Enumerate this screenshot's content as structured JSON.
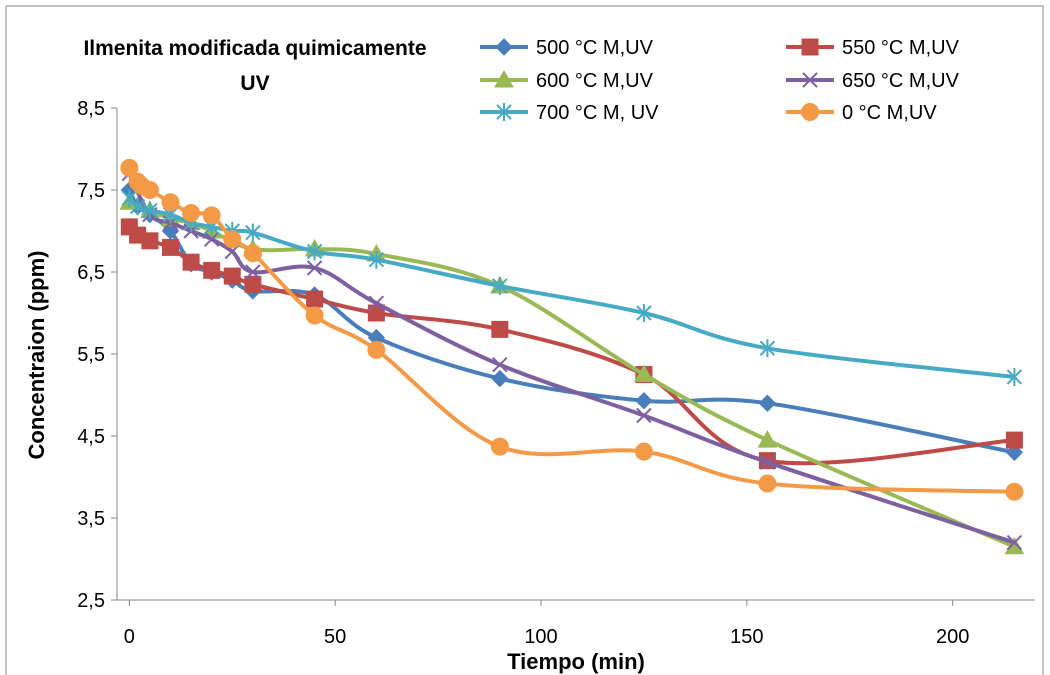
{
  "chart_data": {
    "type": "line",
    "title_line1": "Ilmenita modificada quimicamente",
    "title_line2": "UV",
    "xlabel": "Tiempo (min)",
    "ylabel": "Concentraion (ppm)",
    "xlim": [
      -3,
      220
    ],
    "ylim": [
      2.5,
      8.5
    ],
    "xticks": [
      0,
      50,
      100,
      150,
      200
    ],
    "yticks": [
      2.5,
      3.5,
      4.5,
      5.5,
      6.5,
      7.5,
      8.5
    ],
    "ytick_labels": [
      "2,5",
      "3,5",
      "4,5",
      "5,5",
      "6,5",
      "7,5",
      "8,5"
    ],
    "grid": false,
    "legend_position": "top-right",
    "series": [
      {
        "name": "500 °C M,UV",
        "color": "#4a7ebb",
        "marker": "diamond",
        "x": [
          0,
          2,
          5,
          10,
          15,
          20,
          25,
          30,
          45,
          60,
          90,
          125,
          155,
          215
        ],
        "y": [
          7.5,
          7.3,
          7.2,
          7.0,
          6.6,
          6.5,
          6.4,
          6.27,
          6.22,
          5.7,
          5.2,
          4.93,
          4.9,
          4.3
        ]
      },
      {
        "name": "550 °C M,UV",
        "color": "#be4b48",
        "marker": "square",
        "x": [
          0,
          2,
          5,
          10,
          15,
          20,
          25,
          30,
          45,
          60,
          90,
          125,
          155,
          215
        ],
        "y": [
          7.05,
          6.95,
          6.88,
          6.8,
          6.62,
          6.52,
          6.45,
          6.35,
          6.17,
          6.0,
          5.8,
          5.25,
          4.2,
          4.45
        ]
      },
      {
        "name": "600 °C M,UV",
        "color": "#98b954",
        "marker": "triangle",
        "x": [
          0,
          5,
          10,
          15,
          20,
          30,
          45,
          60,
          90,
          125,
          155,
          215
        ],
        "y": [
          7.35,
          7.25,
          7.15,
          7.1,
          7.0,
          6.78,
          6.78,
          6.72,
          6.33,
          5.25,
          4.45,
          3.15
        ]
      },
      {
        "name": "650 °C M,UV",
        "color": "#7d60a0",
        "marker": "x",
        "x": [
          0,
          5,
          10,
          15,
          20,
          25,
          30,
          45,
          60,
          90,
          125,
          155,
          215
        ],
        "y": [
          7.7,
          7.2,
          7.1,
          7.0,
          6.9,
          6.75,
          6.5,
          6.55,
          6.12,
          5.37,
          4.75,
          4.18,
          3.2
        ]
      },
      {
        "name": "700 °C M, UV",
        "color": "#46aac5",
        "marker": "star",
        "x": [
          0,
          2,
          5,
          10,
          15,
          20,
          25,
          30,
          45,
          60,
          90,
          125,
          155,
          215
        ],
        "y": [
          7.4,
          7.3,
          7.25,
          7.2,
          7.1,
          7.05,
          7.0,
          6.98,
          6.75,
          6.65,
          6.33,
          6.0,
          5.57,
          5.22
        ]
      },
      {
        "name": "0 °C M,UV",
        "color": "#f49a47",
        "marker": "circle",
        "x": [
          0,
          2,
          3,
          5,
          10,
          15,
          20,
          25,
          30,
          45,
          60,
          90,
          125,
          155,
          215
        ],
        "y": [
          7.77,
          7.6,
          7.55,
          7.5,
          7.35,
          7.22,
          7.19,
          6.9,
          6.73,
          5.97,
          5.55,
          4.37,
          4.31,
          3.92,
          3.82
        ]
      }
    ]
  }
}
